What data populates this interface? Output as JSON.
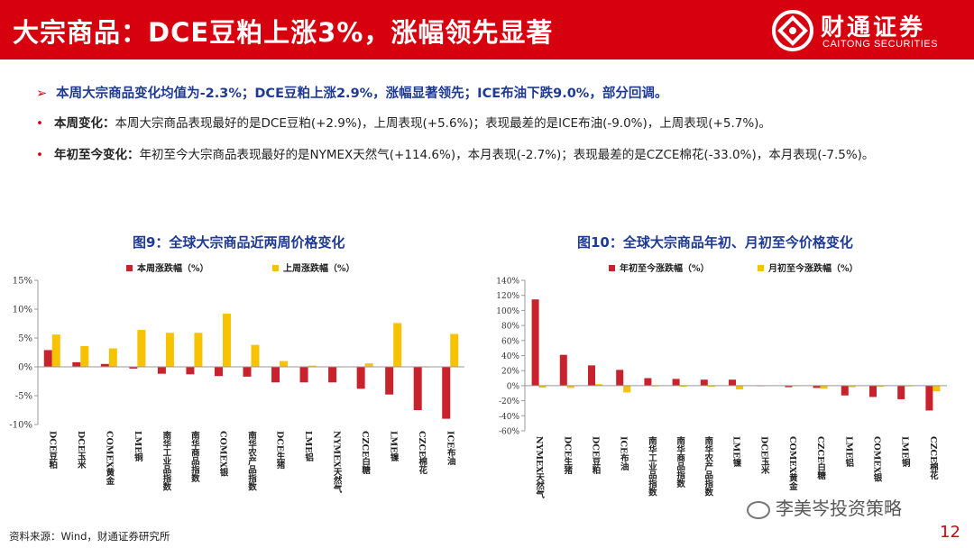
{
  "header": {
    "title": "大宗商品：DCE豆粕上涨3%，涨幅领先显著",
    "logo_cn": "财通证券",
    "logo_en": "CAITONG SECURITIES",
    "bg_color": "#d7000f"
  },
  "summary": {
    "arrow": "➢",
    "text": "本周大宗商品变化均值为-2.3%；DCE豆粕上涨2.9%，涨幅显著领先；ICE布油下跌9.0%，部分回调。"
  },
  "bullets": [
    {
      "dot": "•",
      "label": "本周变化：",
      "text": "本周大宗商品表现最好的是DCE豆粕(+2.9%)，上周表现(+5.6%)；表现最差的是ICE布油(-9.0%)，上周表现(+5.7%)。"
    },
    {
      "dot": "•",
      "label": "年初至今变化：",
      "text": "年初至今大宗商品表现最好的是NYMEX天然气(+114.6%)，本月表现(-2.7%)；表现最差的是CZCE棉花(-33.0%)，本月表现(-7.5%)。"
    }
  ],
  "chart_left_title": "图9：全球大宗商品近两周价格变化",
  "chart_right_title": "图10：全球大宗商品年初、月初至今价格变化",
  "chart_data": [
    {
      "type": "bar",
      "title": "图9：全球大宗商品近两周价格变化",
      "categories": [
        "DCE豆粕",
        "DCE玉米",
        "COMEX黄金",
        "LME铜",
        "南华工业品指数",
        "南华商品指数",
        "COMEX银",
        "南华农产品指数",
        "DCE生猪",
        "LME铝",
        "NYMEX天然气",
        "CZCE白糖",
        "LME镍",
        "CZCE棉花",
        "ICE布油"
      ],
      "series": [
        {
          "name": "本周涨跌幅（%）",
          "color": "#c8222c",
          "values": [
            2.9,
            0.8,
            0.5,
            -0.3,
            -1.2,
            -1.3,
            -1.6,
            -1.7,
            -2.7,
            -2.7,
            -2.7,
            -3.8,
            -4.8,
            -7.5,
            -9.0
          ]
        },
        {
          "name": "上周涨跌幅（%）",
          "color": "#f7c200",
          "values": [
            5.6,
            3.6,
            3.2,
            6.4,
            5.9,
            5.9,
            9.2,
            3.8,
            1.0,
            0.2,
            0.0,
            0.6,
            7.6,
            0.0,
            5.7
          ]
        }
      ],
      "ylim": [
        -10,
        15
      ],
      "yticks": [
        -10,
        -5,
        0,
        5,
        10,
        15
      ],
      "ytick_labels": [
        "-10%",
        "-5%",
        "0%",
        "5%",
        "10%",
        "15%"
      ],
      "legend": "top-center"
    },
    {
      "type": "bar",
      "title": "图10：全球大宗商品年初、月初至今价格变化",
      "categories": [
        "NYMEX天然气",
        "DCE生猪",
        "DCE豆粕",
        "ICE布油",
        "南华工业品指数",
        "南华商品指数",
        "南华农产品指数",
        "LME镍",
        "DCE玉米",
        "COMEX黄金",
        "CZCE白糖",
        "LME铝",
        "COMEX银",
        "LME铜",
        "CZCE棉花"
      ],
      "series": [
        {
          "name": "年初至今涨跌幅（%）",
          "color": "#c8222c",
          "values": [
            114.6,
            41.0,
            27.0,
            21.0,
            10.0,
            9.0,
            8.0,
            8.0,
            0.0,
            -2.0,
            -3.0,
            -13.0,
            -15.0,
            -18.0,
            -33.0
          ]
        },
        {
          "name": "月初至今涨跌幅（%）",
          "color": "#f7c200",
          "values": [
            -2.7,
            -3.0,
            2.0,
            -9.0,
            -1.0,
            -1.5,
            -1.5,
            -5.0,
            0.5,
            0.0,
            -4.0,
            -2.0,
            -1.5,
            -1.0,
            -7.5
          ]
        }
      ],
      "ylim": [
        -60,
        140
      ],
      "yticks": [
        -60,
        -40,
        -20,
        0,
        20,
        40,
        60,
        80,
        100,
        120,
        140
      ],
      "ytick_labels": [
        "-60%",
        "-40%",
        "-20%",
        "0%",
        "20%",
        "40%",
        "60%",
        "80%",
        "100%",
        "120%",
        "140%"
      ],
      "legend": "top-center"
    }
  ],
  "source": "资料来源：Wind，财通证券研究所",
  "watermark": "李美岑投资策略",
  "page_number": "12"
}
